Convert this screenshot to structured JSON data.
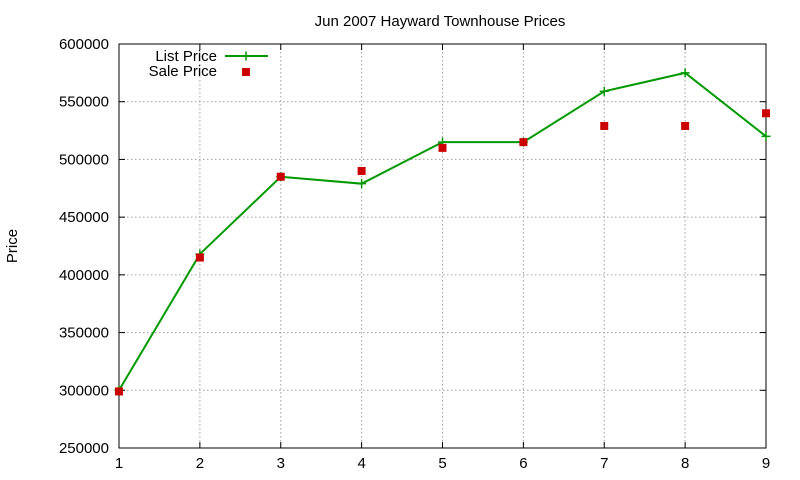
{
  "chart_data": {
    "type": "line",
    "title": "Jun 2007 Hayward Townhouse Prices",
    "xlabel": "",
    "ylabel": "Price",
    "x": [
      1,
      2,
      3,
      4,
      5,
      6,
      7,
      8,
      9
    ],
    "xlim": [
      1,
      9
    ],
    "ylim": [
      250000,
      600000
    ],
    "yticks": [
      250000,
      300000,
      350000,
      400000,
      450000,
      500000,
      550000,
      600000
    ],
    "grid": true,
    "legend_position": "top-left",
    "series": [
      {
        "name": "List Price",
        "style": "line-with-plus-markers",
        "color": "#009900",
        "values": [
          300000,
          418000,
          485000,
          479000,
          515000,
          515000,
          559000,
          575000,
          520000
        ]
      },
      {
        "name": "Sale Price",
        "style": "square-markers",
        "color": "#cc0000",
        "values": [
          299000,
          415000,
          485000,
          490000,
          510000,
          515000,
          529000,
          529000,
          540000
        ]
      }
    ]
  }
}
